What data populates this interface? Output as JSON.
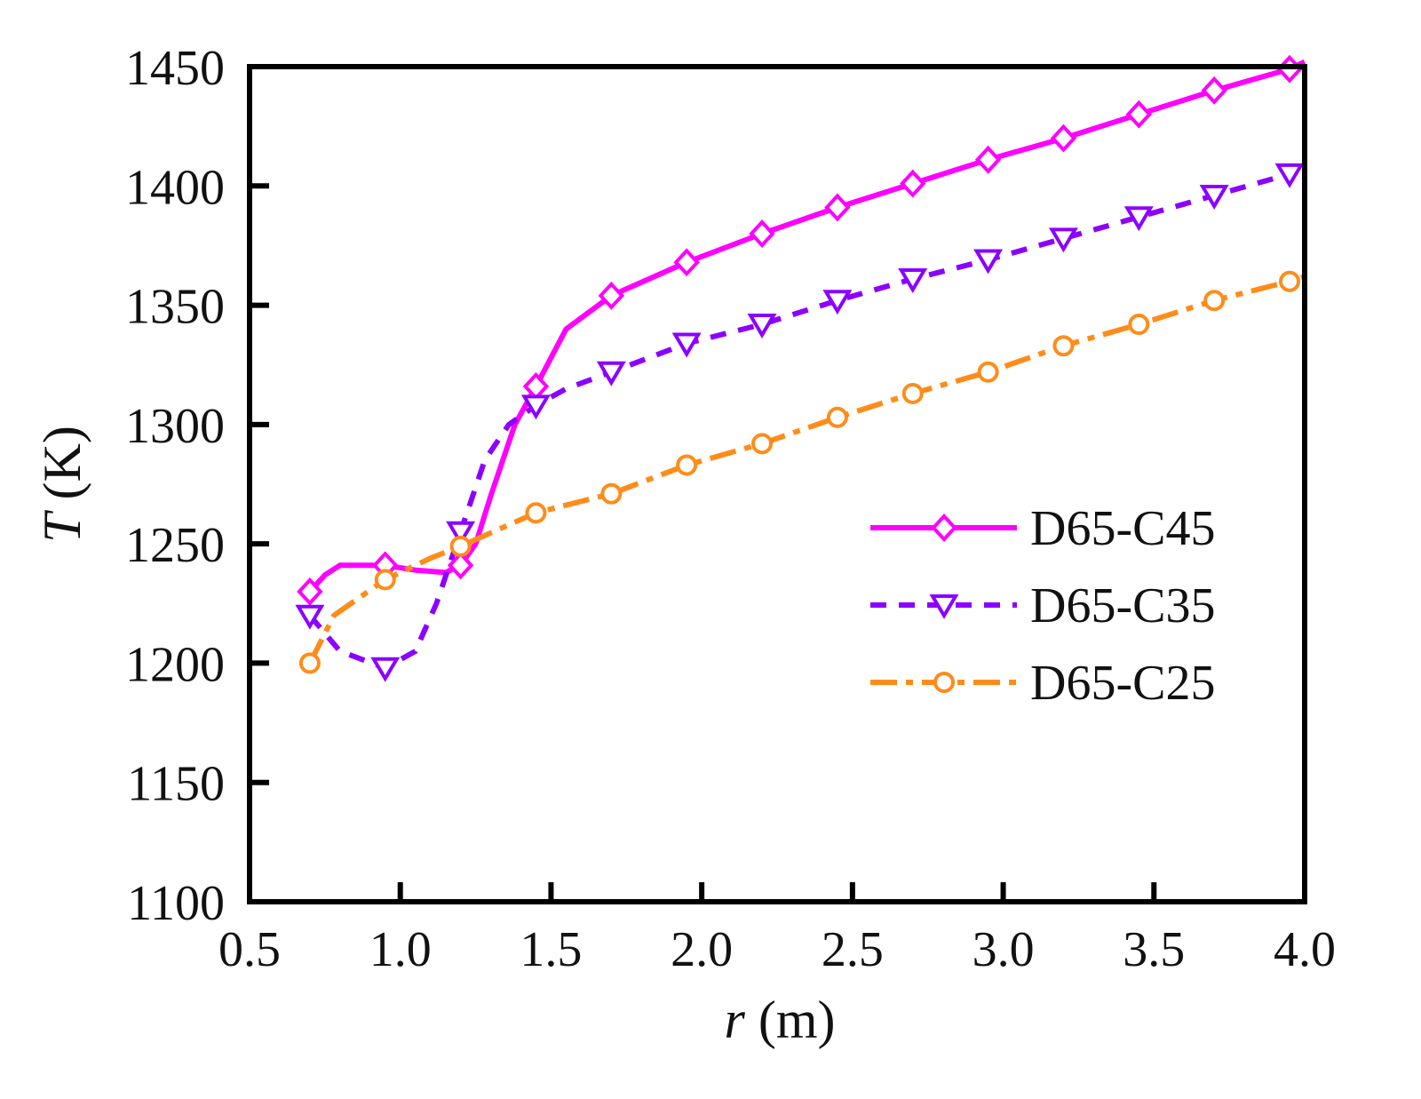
{
  "chart_data": {
    "type": "line",
    "title": "",
    "xlabel": "r (m)",
    "xlabel_symbol": "r",
    "xlabel_unit": " (m)",
    "ylabel": "T (K)",
    "ylabel_symbol": "T",
    "ylabel_unit": " (K)",
    "xlim": [
      0.5,
      4.0
    ],
    "ylim": [
      1100,
      1450
    ],
    "xticks": [
      "0.5",
      "1.0",
      "1.5",
      "2.0",
      "2.5",
      "3.0",
      "3.5",
      "4.0"
    ],
    "yticks": [
      "1100",
      "1150",
      "1200",
      "1250",
      "1300",
      "1350",
      "1400",
      "1450"
    ],
    "grid": false,
    "legend_position": "center-right",
    "series": [
      {
        "name": "D65-C45",
        "color": "#ff00ff",
        "line_style": "solid",
        "marker": "diamond",
        "curve_x": [
          0.7,
          0.75,
          0.8,
          0.95,
          1.05,
          1.15,
          1.2,
          1.25,
          1.3,
          1.38,
          1.45,
          1.55,
          1.7,
          1.95,
          2.2,
          2.45,
          2.7,
          2.95,
          3.2,
          3.45,
          3.7,
          3.95,
          4.0
        ],
        "curve_y": [
          1230,
          1237,
          1241,
          1241,
          1239,
          1238,
          1241,
          1250,
          1270,
          1300,
          1316,
          1340,
          1354,
          1368,
          1380,
          1391,
          1401,
          1411,
          1420,
          1430,
          1440,
          1449,
          1452
        ],
        "marker_x": [
          0.7,
          0.95,
          1.2,
          1.45,
          1.7,
          1.95,
          2.2,
          2.45,
          2.7,
          2.95,
          3.2,
          3.45,
          3.7,
          3.95
        ],
        "marker_y": [
          1230,
          1241,
          1241,
          1316,
          1354,
          1368,
          1380,
          1391,
          1401,
          1411,
          1420,
          1430,
          1440,
          1449
        ]
      },
      {
        "name": "D65-C35",
        "color": "#8b00ff",
        "line_style": "dashed",
        "marker": "triangle-down",
        "curve_x": [
          0.7,
          0.8,
          0.95,
          1.05,
          1.12,
          1.2,
          1.28,
          1.36,
          1.45,
          1.55,
          1.7,
          1.95,
          2.2,
          2.45,
          2.7,
          2.95,
          3.2,
          3.45,
          3.7,
          3.95
        ],
        "curve_y": [
          1220,
          1205,
          1198,
          1205,
          1225,
          1255,
          1285,
          1300,
          1308,
          1315,
          1322,
          1334,
          1342,
          1352,
          1361,
          1369,
          1378,
          1387,
          1396,
          1405
        ],
        "marker_x": [
          0.7,
          0.95,
          1.2,
          1.45,
          1.7,
          1.95,
          2.2,
          2.45,
          2.7,
          2.95,
          3.2,
          3.45,
          3.7,
          3.95
        ],
        "marker_y": [
          1220,
          1198,
          1255,
          1308,
          1322,
          1334,
          1342,
          1352,
          1361,
          1369,
          1378,
          1387,
          1396,
          1405
        ]
      },
      {
        "name": "D65-C25",
        "color": "#ff8c1a",
        "line_style": "dash-dot",
        "marker": "circle",
        "curve_x": [
          0.7,
          0.78,
          0.95,
          1.1,
          1.2,
          1.45,
          1.7,
          1.95,
          2.2,
          2.45,
          2.7,
          2.95,
          3.2,
          3.45,
          3.7,
          3.95,
          4.0
        ],
        "curve_y": [
          1200,
          1220,
          1235,
          1244,
          1249,
          1263,
          1271,
          1283,
          1292,
          1303,
          1313,
          1322,
          1333,
          1342,
          1352,
          1360,
          1362
        ],
        "marker_x": [
          0.7,
          0.95,
          1.2,
          1.45,
          1.7,
          1.95,
          2.2,
          2.45,
          2.7,
          2.95,
          3.2,
          3.45,
          3.7,
          3.95
        ],
        "marker_y": [
          1200,
          1235,
          1249,
          1263,
          1271,
          1283,
          1292,
          1303,
          1313,
          1322,
          1333,
          1342,
          1352,
          1360
        ]
      }
    ]
  }
}
